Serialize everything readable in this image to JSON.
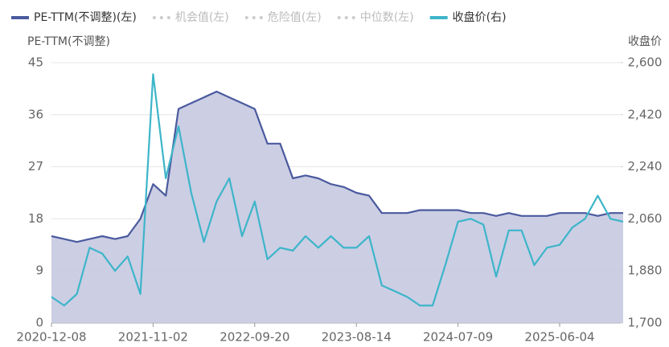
{
  "chart_data": {
    "type": "line",
    "x": [
      "2020-12-08",
      "2021-01-18",
      "2021-02-26",
      "2021-04-08",
      "2021-05-19",
      "2021-06-29",
      "2021-08-09",
      "2021-09-17",
      "2021-11-02",
      "2021-12-13",
      "2022-01-24",
      "2022-03-09",
      "2022-04-19",
      "2022-05-30",
      "2022-07-08",
      "2022-08-16",
      "2022-09-20",
      "2022-10-31",
      "2022-12-09",
      "2023-01-19",
      "2023-03-02",
      "2023-04-12",
      "2023-05-23",
      "2023-07-03",
      "2023-08-14",
      "2023-09-22",
      "2023-11-06",
      "2023-12-15",
      "2024-01-26",
      "2024-03-12",
      "2024-04-22",
      "2024-05-30",
      "2024-07-09",
      "2024-08-16",
      "2024-09-26",
      "2024-11-06",
      "2024-12-16",
      "2025-01-27",
      "2025-03-11",
      "2025-04-22",
      "2025-06-04",
      "2025-07-14",
      "2025-08-22",
      "2025-10-09",
      "2025-11-18",
      "2025-12-26"
    ],
    "xticks": [
      "2020-12-08",
      "2021-11-02",
      "2022-09-20",
      "2023-08-14",
      "2024-07-09",
      "2025-06-04"
    ],
    "series": [
      {
        "name": "PE-TTM(不调整)(左)",
        "color": "#4a5a9e",
        "fill": "#c6c9e1",
        "axis": "y",
        "values": [
          15,
          14.5,
          14,
          14.5,
          15,
          14.5,
          15,
          18,
          24,
          22,
          37,
          38,
          39,
          40,
          39,
          38,
          37,
          31,
          31,
          25,
          25.5,
          25,
          24,
          23.5,
          22.5,
          22,
          19,
          19,
          19,
          19.5,
          19.5,
          19.5,
          19.5,
          19,
          19,
          18.5,
          19,
          18.5,
          18.5,
          18.5,
          19,
          19,
          19,
          18.5,
          19,
          19
        ]
      },
      {
        "name": "收盘价(右)",
        "color": "#3db5c9",
        "axis": "y2",
        "values": [
          1790,
          1760,
          1800,
          1960,
          1940,
          1880,
          1930,
          1800,
          2560,
          2200,
          2380,
          2150,
          1980,
          2120,
          2200,
          2000,
          2120,
          1920,
          1960,
          1950,
          2000,
          1960,
          2000,
          1960,
          1960,
          2000,
          1830,
          1810,
          1790,
          1760,
          1760,
          1900,
          2050,
          2060,
          2040,
          1860,
          2020,
          2020,
          1900,
          1960,
          1970,
          2030,
          2060,
          2140,
          2060,
          2050
        ]
      }
    ],
    "hidden_series": [
      {
        "name": "机会值(左)",
        "color": "#cccccc"
      },
      {
        "name": "危险值(左)",
        "color": "#cccccc"
      },
      {
        "name": "中位数(左)",
        "color": "#cccccc"
      }
    ],
    "ylabel": "PE-TTM(不调整)",
    "y2label": "收盘价",
    "ylim": [
      0,
      45
    ],
    "yticks": [
      0,
      9,
      18,
      27,
      36,
      45
    ],
    "y2lim": [
      1700,
      2600
    ],
    "y2ticks": [
      {
        "value": 1700,
        "label": "1,700"
      },
      {
        "value": 1880,
        "label": "1,880"
      },
      {
        "value": 2060,
        "label": "2,060"
      },
      {
        "value": 2240,
        "label": "2,240"
      },
      {
        "value": 2420,
        "label": "2,420"
      },
      {
        "value": 2600,
        "label": "2,600"
      }
    ],
    "grid": true
  }
}
